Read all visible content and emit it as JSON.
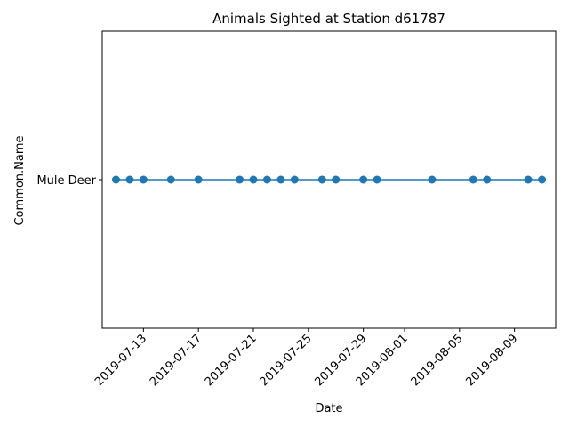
{
  "chart_data": {
    "type": "line",
    "title": "Animals Sighted at Station d61787",
    "xlabel": "Date",
    "ylabel": "Common.Name",
    "x_type": "date",
    "xlim": [
      "2019-07-10",
      "2019-08-12"
    ],
    "y_categories": [
      "Mule Deer"
    ],
    "x_ticks": [
      "2019-07-13",
      "2019-07-17",
      "2019-07-21",
      "2019-07-25",
      "2019-07-29",
      "2019-08-01",
      "2019-08-05",
      "2019-08-09"
    ],
    "grid": false,
    "marker": "circle",
    "series_color": "#1f77b4",
    "series": [
      {
        "x": [
          "2019-07-11",
          "2019-07-12",
          "2019-07-13",
          "2019-07-15",
          "2019-07-17",
          "2019-07-20",
          "2019-07-21",
          "2019-07-22",
          "2019-07-23",
          "2019-07-24",
          "2019-07-26",
          "2019-07-27",
          "2019-07-29",
          "2019-07-30",
          "2019-08-03",
          "2019-08-06",
          "2019-08-07",
          "2019-08-10",
          "2019-08-11"
        ],
        "y": [
          "Mule Deer",
          "Mule Deer",
          "Mule Deer",
          "Mule Deer",
          "Mule Deer",
          "Mule Deer",
          "Mule Deer",
          "Mule Deer",
          "Mule Deer",
          "Mule Deer",
          "Mule Deer",
          "Mule Deer",
          "Mule Deer",
          "Mule Deer",
          "Mule Deer",
          "Mule Deer",
          "Mule Deer",
          "Mule Deer",
          "Mule Deer"
        ]
      }
    ]
  }
}
